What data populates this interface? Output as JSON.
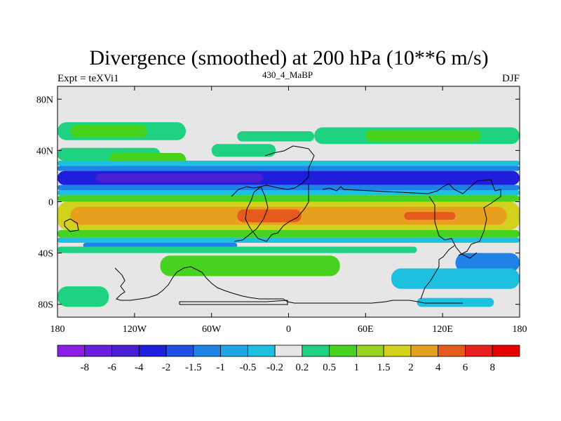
{
  "chart_data": {
    "type": "heatmap",
    "title": "Divergence (smoothed) at 200 hPa (10**6 m/s)",
    "subtitle_left": "Expt = teXVi1",
    "subtitle_center": "430_4_MaBP",
    "subtitle_right": "DJF",
    "x_ticks": [
      "180",
      "120W",
      "60W",
      "0",
      "60E",
      "120E",
      "180"
    ],
    "x_values": [
      -180,
      -120,
      -60,
      0,
      60,
      120,
      180
    ],
    "y_ticks": [
      "80N",
      "40N",
      "0",
      "40S",
      "80S"
    ],
    "y_values": [
      80,
      40,
      0,
      -40,
      -80
    ],
    "xlim": [
      -180,
      180
    ],
    "ylim": [
      -90,
      90
    ],
    "levels": [
      "-8",
      "-6",
      "-4",
      "-2",
      "-1.5",
      "-1",
      "-0.5",
      "-0.2",
      "0.2",
      "0.5",
      "1",
      "1.5",
      "2",
      "4",
      "6",
      "8"
    ],
    "colors": [
      "#8a1ee6",
      "#6a1ede",
      "#4a1ed2",
      "#1e1edc",
      "#1e50e6",
      "#1e82e6",
      "#1ea6e6",
      "#1ec0e0",
      "#e6e6e6",
      "#1ed282",
      "#46d21e",
      "#96d21e",
      "#d2d21e",
      "#e6a01e",
      "#e65a1e",
      "#e61e1e",
      "#e60000"
    ],
    "bands": [
      {
        "lat_top": 62,
        "lat_bottom": 48,
        "lon_start": -180,
        "lon_end": -80,
        "color_index": 9
      },
      {
        "lat_top": 60,
        "lat_bottom": 50,
        "lon_start": -170,
        "lon_end": -110,
        "color_index": 10
      },
      {
        "lat_top": 55,
        "lat_bottom": 47,
        "lon_start": -40,
        "lon_end": 20,
        "color_index": 9
      },
      {
        "lat_top": 58,
        "lat_bottom": 45,
        "lon_start": 20,
        "lon_end": 180,
        "color_index": 9
      },
      {
        "lat_top": 56,
        "lat_bottom": 47,
        "lon_start": 60,
        "lon_end": 150,
        "color_index": 10
      },
      {
        "lat_top": 42,
        "lat_bottom": 32,
        "lon_start": -180,
        "lon_end": -100,
        "color_index": 9
      },
      {
        "lat_top": 38,
        "lat_bottom": 28,
        "lon_start": -140,
        "lon_end": -80,
        "color_index": 10
      },
      {
        "lat_top": 45,
        "lat_bottom": 35,
        "lon_start": -60,
        "lon_end": -10,
        "color_index": 9
      },
      {
        "lat_top": 32,
        "lat_bottom": 28,
        "lon_start": -180,
        "lon_end": 180,
        "color_index": 7
      },
      {
        "lat_top": 28,
        "lat_bottom": 24,
        "lon_start": -180,
        "lon_end": 180,
        "color_index": 5
      },
      {
        "lat_top": 24,
        "lat_bottom": 13,
        "lon_start": -180,
        "lon_end": 180,
        "color_index": 3
      },
      {
        "lat_top": 22,
        "lat_bottom": 15,
        "lon_start": -150,
        "lon_end": -20,
        "color_index": 2
      },
      {
        "lat_top": 13,
        "lat_bottom": 9,
        "lon_start": -180,
        "lon_end": 180,
        "color_index": 5
      },
      {
        "lat_top": 9,
        "lat_bottom": 5,
        "lon_start": -180,
        "lon_end": 180,
        "color_index": 7
      },
      {
        "lat_top": 5,
        "lat_bottom": 0,
        "lon_start": -180,
        "lon_end": 180,
        "color_index": 10
      },
      {
        "lat_top": 0,
        "lat_bottom": -22,
        "lon_start": -180,
        "lon_end": 180,
        "color_index": 12
      },
      {
        "lat_top": -4,
        "lat_bottom": -18,
        "lon_start": -170,
        "lon_end": 170,
        "color_index": 13
      },
      {
        "lat_top": -6,
        "lat_bottom": -16,
        "lon_start": -40,
        "lon_end": 10,
        "color_index": 14
      },
      {
        "lat_top": -8,
        "lat_bottom": -14,
        "lon_start": 90,
        "lon_end": 130,
        "color_index": 14
      },
      {
        "lat_top": -22,
        "lat_bottom": -28,
        "lon_start": -180,
        "lon_end": 180,
        "color_index": 10
      },
      {
        "lat_top": -28,
        "lat_bottom": -32,
        "lon_start": -180,
        "lon_end": 180,
        "color_index": 7
      },
      {
        "lat_top": -32,
        "lat_bottom": -36,
        "lon_start": -160,
        "lon_end": -40,
        "color_index": 5
      },
      {
        "lat_top": -35,
        "lat_bottom": -40,
        "lon_start": -180,
        "lon_end": 100,
        "color_index": 9
      },
      {
        "lat_top": -42,
        "lat_bottom": -58,
        "lon_start": -100,
        "lon_end": 40,
        "color_index": 10
      },
      {
        "lat_top": -40,
        "lat_bottom": -55,
        "lon_start": 130,
        "lon_end": 180,
        "color_index": 5
      },
      {
        "lat_top": -52,
        "lat_bottom": -68,
        "lon_start": 80,
        "lon_end": 180,
        "color_index": 7
      },
      {
        "lat_top": -66,
        "lat_bottom": -82,
        "lon_start": -180,
        "lon_end": -140,
        "color_index": 9
      },
      {
        "lat_top": -75,
        "lat_bottom": -82,
        "lon_start": 100,
        "lon_end": 160,
        "color_index": 7
      }
    ]
  }
}
